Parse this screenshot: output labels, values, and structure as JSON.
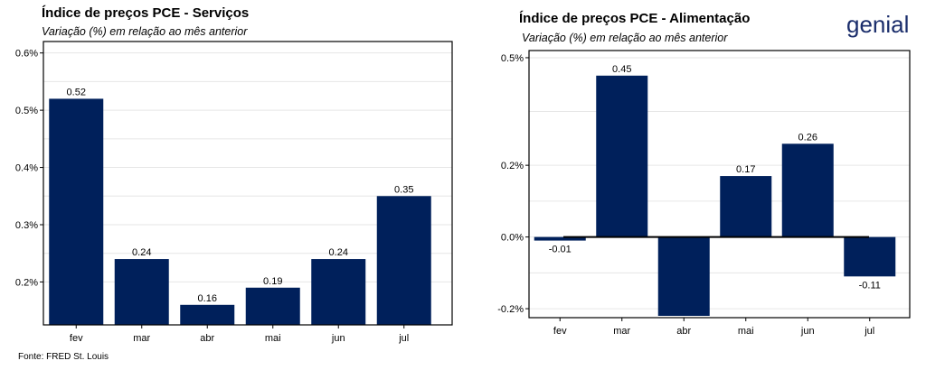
{
  "brand": {
    "name": "genial",
    "color": "#1a2d6b"
  },
  "source": "Fonte: FRED St. Louis",
  "colors": {
    "bar": "#00205b",
    "grid": "#e6e6e6",
    "frame": "#000000"
  },
  "charts": [
    {
      "title": "Índice de preços PCE - Serviços",
      "subtitle": "Variação (%) em relação ao mês anterior"
    },
    {
      "title": "Índice de preços PCE - Alimentação",
      "subtitle": "Variação (%) em relação ao mês anterior"
    }
  ],
  "chart_data": [
    {
      "type": "bar",
      "title": "Índice de preços PCE - Serviços",
      "subtitle": "Variação (%) em relação ao mês anterior",
      "categories": [
        "fev",
        "mar",
        "abr",
        "mai",
        "jun",
        "jul"
      ],
      "values": [
        0.52,
        0.24,
        0.16,
        0.19,
        0.24,
        0.35
      ],
      "value_labels": [
        "0.52",
        "0.24",
        "0.16",
        "0.19",
        "0.24",
        "0.35"
      ],
      "yticks": [
        0.2,
        0.3,
        0.4,
        0.5,
        0.6
      ],
      "ytick_labels": [
        "0.2%",
        "0.3%",
        "0.4%",
        "0.5%",
        "0.6%"
      ],
      "ylim": [
        0.125,
        0.62
      ],
      "xlabel": "",
      "ylabel": "",
      "grid": true,
      "legend": "none"
    },
    {
      "type": "bar",
      "title": "Índice de preços PCE - Alimentação",
      "subtitle": "Variação (%) em relação ao mês anterior",
      "categories": [
        "fev",
        "mar",
        "abr",
        "mai",
        "jun",
        "jul"
      ],
      "values": [
        -0.01,
        0.45,
        -0.22,
        0.17,
        0.26,
        -0.11
      ],
      "value_labels": [
        "-0.01",
        "0.45",
        "",
        "0.17",
        "0.26",
        "-0.11"
      ],
      "yticks": [
        -0.2,
        0.0,
        0.2,
        0.5
      ],
      "ytick_labels": [
        "-0.2%",
        "0.0%",
        "0.2%",
        "0.5%"
      ],
      "ylim": [
        -0.225,
        0.52
      ],
      "xlabel": "",
      "ylabel": "",
      "grid": true,
      "legend": "none"
    }
  ]
}
